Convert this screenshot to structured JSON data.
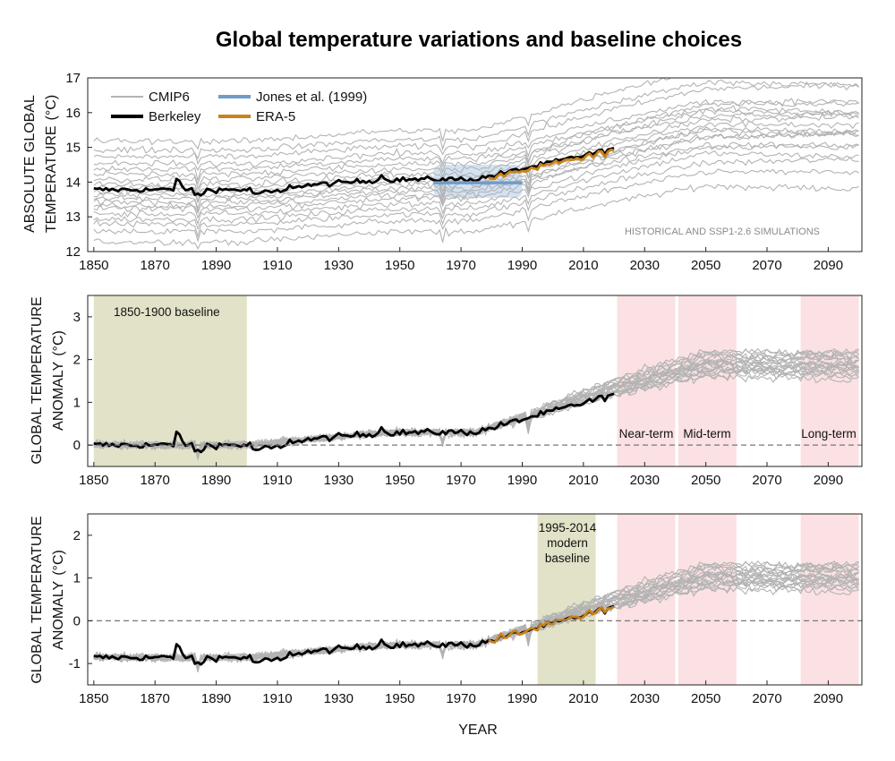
{
  "title": "Global temperature variations and baseline choices",
  "colors": {
    "cmip6": "#b3b3b3",
    "berkeley": "#000000",
    "jones": "#6f9bcb",
    "jones_band": "#c4d8ee",
    "era5": "#c9821a",
    "baseline_box": "#e2e2c8",
    "future_box": "#fbe1e3",
    "zero_line": "#777777"
  },
  "chart_data": [
    {
      "type": "line",
      "panel": "top",
      "ylabel_line1": "ABSOLUTE GLOBAL",
      "ylabel_line2": "TEMPERATURE",
      "ylabel_unit": "(°C)",
      "xlim": [
        1848,
        2101
      ],
      "ylim": [
        12,
        17
      ],
      "yticks": [
        "12",
        "13",
        "14",
        "15",
        "16",
        "17"
      ],
      "xticks": [
        "1850",
        "1870",
        "1890",
        "1910",
        "1930",
        "1950",
        "1970",
        "1990",
        "2010",
        "2030",
        "2050",
        "2070",
        "2090"
      ],
      "annotation": "HISTORICAL AND SSP1-2.6 SIMULATIONS",
      "legend": {
        "cmip6": "CMIP6",
        "berkeley": "Berkeley",
        "jones": "Jones et al. (1999)",
        "era5": "ERA-5"
      },
      "jones_1999": {
        "x": [
          1961,
          1990
        ],
        "y": 13.98,
        "band": [
          13.55,
          14.5
        ]
      },
      "series_description": "CMIP6 ensemble (approx. 20 members), Berkeley Earth absolute temperature 1850-2020, ERA-5 1979-2020",
      "cmip6_offsets": [
        -1.5,
        -1.2,
        -1.0,
        -0.85,
        -0.7,
        -0.55,
        -0.45,
        -0.35,
        -0.25,
        -0.15,
        -0.05,
        0.05,
        0.15,
        0.3,
        0.45,
        0.6,
        0.75,
        0.95,
        1.15,
        1.4
      ]
    },
    {
      "type": "line",
      "panel": "middle",
      "ylabel_line1": "GLOBAL TEMPERATURE",
      "ylabel_line2": "ANOMALY",
      "ylabel_unit": "(°C)",
      "xlim": [
        1848,
        2101
      ],
      "ylim": [
        -0.5,
        3.5
      ],
      "yticks": [
        "0",
        "1",
        "2",
        "3"
      ],
      "xticks": [
        "1850",
        "1870",
        "1890",
        "1910",
        "1930",
        "1950",
        "1970",
        "1990",
        "2010",
        "2030",
        "2050",
        "2070",
        "2090"
      ],
      "baseline_label": "1850-1900 baseline",
      "baseline_range": [
        1850,
        1900
      ],
      "term_boxes": [
        {
          "label": "Near-term",
          "range": [
            2021,
            2040
          ]
        },
        {
          "label": "Mid-term",
          "range": [
            2041,
            2060
          ]
        },
        {
          "label": "Long-term",
          "range": [
            2081,
            2100
          ]
        }
      ]
    },
    {
      "type": "line",
      "panel": "bottom",
      "ylabel_line1": "GLOBAL TEMPERATURE",
      "ylabel_line2": "ANOMALY",
      "ylabel_unit": "(°C)",
      "xlabel": "YEAR",
      "xlim": [
        1848,
        2101
      ],
      "ylim": [
        -1.5,
        2.5
      ],
      "yticks": [
        "-1",
        "0",
        "1",
        "2"
      ],
      "xticks": [
        "1850",
        "1870",
        "1890",
        "1910",
        "1930",
        "1950",
        "1970",
        "1990",
        "2010",
        "2030",
        "2050",
        "2070",
        "2090"
      ],
      "baseline_label_lines": [
        "1995-2014",
        "modern",
        "baseline"
      ],
      "baseline_range": [
        1995,
        2014
      ],
      "term_boxes": [
        {
          "range": [
            2021,
            2040
          ]
        },
        {
          "range": [
            2041,
            2060
          ]
        },
        {
          "range": [
            2081,
            2100
          ]
        }
      ]
    }
  ]
}
